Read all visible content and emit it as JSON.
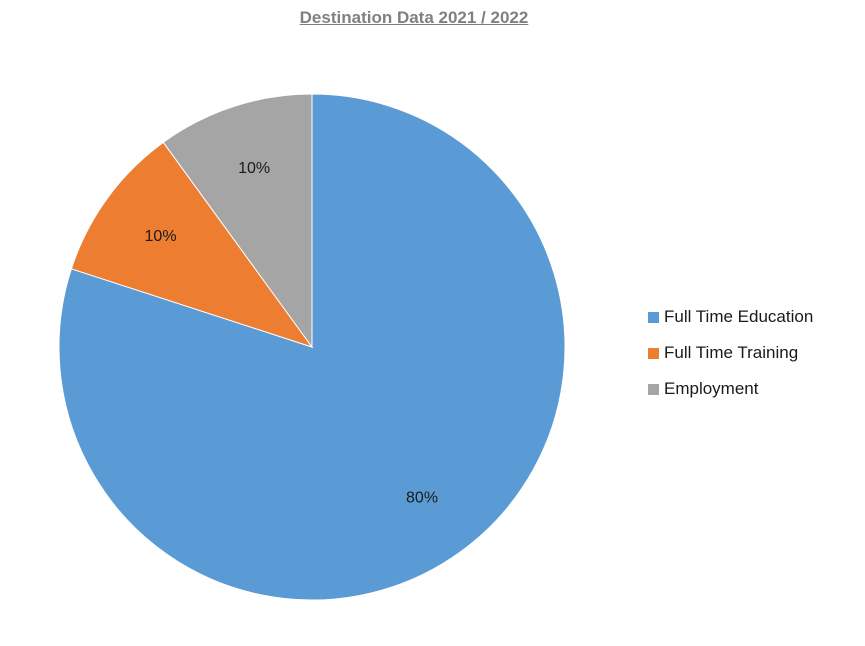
{
  "chart_data": {
    "type": "pie",
    "title": "Destination Data 2021 / 2022",
    "categories": [
      "Full Time Education",
      "Full Time Training",
      "Employment"
    ],
    "values": [
      80,
      10,
      10
    ],
    "value_labels": [
      "80%",
      "10%",
      "10%"
    ],
    "colors": [
      "#5b9bd5",
      "#ed7d31",
      "#a5a5a5"
    ],
    "legend_position": "right",
    "start_angle_deg": 0,
    "direction": "clockwise"
  }
}
